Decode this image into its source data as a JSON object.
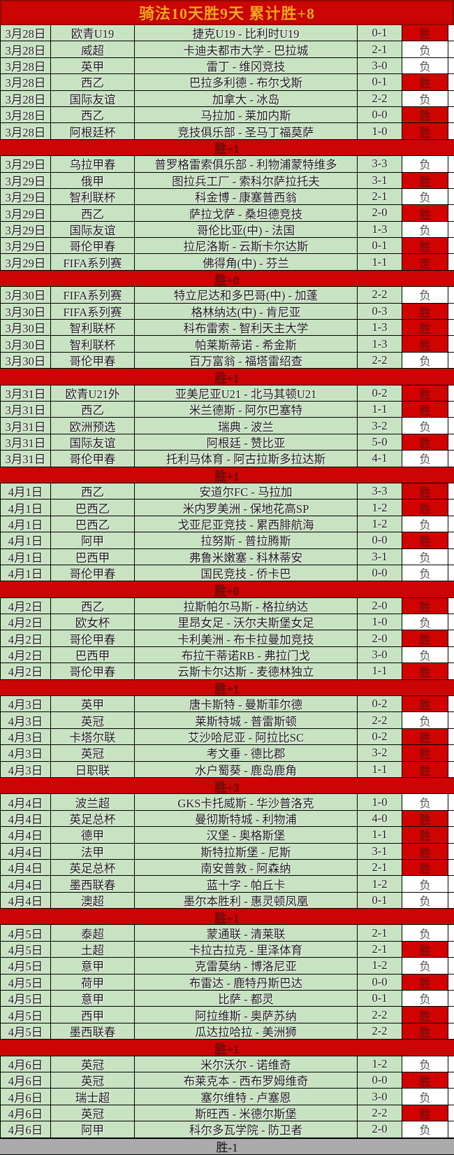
{
  "title": "骑法10天胜9天  累计胜+8",
  "colors": {
    "title_bg": "#cb0404",
    "title_text": "#ffa41c",
    "row_bg": "#c8e3c2",
    "win_bg": "#d00300",
    "win_text": "#7c1111",
    "lose_bg": "#ffffff",
    "lose_text": "#555555",
    "sep_bg": "#cb0404",
    "sep_text": "#7a0b0b",
    "footer_bg": "#ababab",
    "border": "#000000"
  },
  "result_legend": {
    "win": "胜",
    "lose": "负",
    "push": "走"
  },
  "sections": [
    {
      "summary": {
        "label": "胜+1",
        "style": "red"
      },
      "rows": [
        {
          "date": "3月28日",
          "league": "欧青U19",
          "match": "捷克U19 - 比利时U19",
          "score": "0-1",
          "result": "胜",
          "type": "win"
        },
        {
          "date": "3月28日",
          "league": "威超",
          "match": "卡迪夫都市大学 - 巴拉城",
          "score": "2-1",
          "result": "负",
          "type": "lose"
        },
        {
          "date": "3月28日",
          "league": "英甲",
          "match": "雷丁 - 维冈竞技",
          "score": "3-0",
          "result": "负",
          "type": "lose"
        },
        {
          "date": "3月28日",
          "league": "西乙",
          "match": "巴拉多利德 - 布尔戈斯",
          "score": "0-1",
          "result": "胜",
          "type": "win"
        },
        {
          "date": "3月28日",
          "league": "国际友谊",
          "match": "加拿大 - 冰岛",
          "score": "2-2",
          "result": "负",
          "type": "lose"
        },
        {
          "date": "3月28日",
          "league": "西乙",
          "match": "马拉加 - 莱加内斯",
          "score": "0-0",
          "result": "胜",
          "type": "win"
        },
        {
          "date": "3月28日",
          "league": "阿根廷杯",
          "match": "竞技俱乐部 - 圣马丁福莫萨",
          "score": "1-0",
          "result": "胜",
          "type": "win"
        }
      ]
    },
    {
      "summary": {
        "label": "胜+0",
        "style": "red"
      },
      "rows": [
        {
          "date": "3月29日",
          "league": "乌拉甲春",
          "match": "普罗格雷索俱乐部 - 利物浦蒙特维多",
          "score": "3-3",
          "result": "负",
          "type": "lose"
        },
        {
          "date": "3月29日",
          "league": "俄甲",
          "match": "图拉兵工厂 - 索科尔萨拉托夫",
          "score": "3-1",
          "result": "胜",
          "type": "win"
        },
        {
          "date": "3月29日",
          "league": "智利联杯",
          "match": "科金博 - 康塞普西翁",
          "score": "2-1",
          "result": "负",
          "type": "lose"
        },
        {
          "date": "3月29日",
          "league": "西乙",
          "match": "萨拉戈萨 - 桑坦德竞技",
          "score": "2-0",
          "result": "胜",
          "type": "win"
        },
        {
          "date": "3月29日",
          "league": "国际友谊",
          "match": "哥伦比亚(中) - 法国",
          "score": "1-3",
          "result": "负",
          "type": "lose"
        },
        {
          "date": "3月29日",
          "league": "哥伦甲春",
          "match": "拉尼洛斯 - 云斯卡尔达斯",
          "score": "0-1",
          "result": "胜",
          "type": "win"
        },
        {
          "date": "3月29日",
          "league": "FIFA系列赛",
          "match": "佛得角(中) - 芬兰",
          "score": "1-1",
          "result": "走",
          "type": "push"
        }
      ]
    },
    {
      "summary": {
        "label": "胜+1",
        "style": "red"
      },
      "rows": [
        {
          "date": "3月30日",
          "league": "FIFA系列赛",
          "match": "特立尼达和多巴哥(中) - 加蓬",
          "score": "2-2",
          "result": "负",
          "type": "lose"
        },
        {
          "date": "3月30日",
          "league": "FIFA系列赛",
          "match": "格林纳达(中) - 肯尼亚",
          "score": "0-3",
          "result": "胜",
          "type": "win"
        },
        {
          "date": "3月30日",
          "league": "智利联杯",
          "match": "科布雷索 - 智利天主大学",
          "score": "1-3",
          "result": "胜",
          "type": "win"
        },
        {
          "date": "3月30日",
          "league": "智利联杯",
          "match": "帕莱斯蒂诺 - 希金斯",
          "score": "1-3",
          "result": "胜",
          "type": "win"
        },
        {
          "date": "3月30日",
          "league": "哥伦甲春",
          "match": "百万富翁 - 福塔雷绍查",
          "score": "2-2",
          "result": "负",
          "type": "lose"
        }
      ]
    },
    {
      "summary": {
        "label": "胜+1",
        "style": "red"
      },
      "rows": [
        {
          "date": "3月31日",
          "league": "欧青U21外",
          "match": "亚美尼亚U21 - 北马其顿U21",
          "score": "0-2",
          "result": "胜",
          "type": "win"
        },
        {
          "date": "3月31日",
          "league": "西乙",
          "match": "米兰德斯 - 阿尔巴塞特",
          "score": "1-1",
          "result": "胜",
          "type": "win"
        },
        {
          "date": "3月31日",
          "league": "欧洲预选",
          "match": "瑞典 - 波兰",
          "score": "3-2",
          "result": "负",
          "type": "lose"
        },
        {
          "date": "3月31日",
          "league": "国际友谊",
          "match": "阿根廷 - 赞比亚",
          "score": "5-0",
          "result": "胜",
          "type": "win"
        },
        {
          "date": "3月31日",
          "league": "哥伦甲春",
          "match": "托利马体育 - 阿古拉斯多拉达斯",
          "score": "4-1",
          "result": "负",
          "type": "lose"
        }
      ]
    },
    {
      "summary": {
        "label": "胜+0",
        "style": "red"
      },
      "rows": [
        {
          "date": "4月1日",
          "league": "西乙",
          "match": "安道尔FC - 马拉加",
          "score": "3-3",
          "result": "胜",
          "type": "win"
        },
        {
          "date": "4月1日",
          "league": "巴西乙",
          "match": "米内罗美洲 - 保地花高SP",
          "score": "1-2",
          "result": "胜",
          "type": "win"
        },
        {
          "date": "4月1日",
          "league": "巴西乙",
          "match": "戈亚尼亚竞技 - 累西腓航海",
          "score": "1-2",
          "result": "负",
          "type": "lose"
        },
        {
          "date": "4月1日",
          "league": "阿甲",
          "match": "拉努斯 - 普拉腾斯",
          "score": "0-0",
          "result": "胜",
          "type": "win"
        },
        {
          "date": "4月1日",
          "league": "巴西甲",
          "match": "弗鲁米嫩塞 - 科林蒂安",
          "score": "3-1",
          "result": "负",
          "type": "lose"
        },
        {
          "date": "4月1日",
          "league": "哥伦甲春",
          "match": "国民竞技 - 侨卡巴",
          "score": "0-0",
          "result": "负",
          "type": "lose"
        }
      ]
    },
    {
      "summary": {
        "label": "胜+1",
        "style": "red"
      },
      "rows": [
        {
          "date": "4月2日",
          "league": "西乙",
          "match": "拉斯帕尔马斯 - 格拉纳达",
          "score": "2-0",
          "result": "胜",
          "type": "win"
        },
        {
          "date": "4月2日",
          "league": "欧女杯",
          "match": "里昂女足 - 沃尔夫斯堡女足",
          "score": "1-0",
          "result": "负",
          "type": "lose"
        },
        {
          "date": "4月2日",
          "league": "哥伦甲春",
          "match": "卡利美洲 - 布卡拉曼加竞技",
          "score": "2-0",
          "result": "胜",
          "type": "win"
        },
        {
          "date": "4月2日",
          "league": "巴西甲",
          "match": "布拉干蒂诺RB - 弗拉门戈",
          "score": "3-0",
          "result": "负",
          "type": "lose"
        },
        {
          "date": "4月2日",
          "league": "哥伦甲春",
          "match": "云斯卡尔达斯 - 麦德林独立",
          "score": "1-1",
          "result": "胜",
          "type": "win"
        }
      ]
    },
    {
      "summary": {
        "label": "胜+3",
        "style": "red"
      },
      "rows": [
        {
          "date": "4月3日",
          "league": "英甲",
          "match": "唐卡斯特 - 曼斯菲尔德",
          "score": "0-2",
          "result": "胜",
          "type": "win"
        },
        {
          "date": "4月3日",
          "league": "英冠",
          "match": "莱斯特城 - 普雷斯顿",
          "score": "2-2",
          "result": "负",
          "type": "lose"
        },
        {
          "date": "4月3日",
          "league": "卡塔尔联",
          "match": "艾沙哈尼亚 - 阿拉比SC",
          "score": "0-2",
          "result": "胜",
          "type": "win"
        },
        {
          "date": "4月3日",
          "league": "英冠",
          "match": "考文垂 - 德比郡",
          "score": "3-2",
          "result": "胜",
          "type": "win"
        },
        {
          "date": "4月3日",
          "league": "日职联",
          "match": "水户蜀葵 - 鹿岛鹿角",
          "score": "1-1",
          "result": "胜",
          "type": "win"
        }
      ]
    },
    {
      "summary": {
        "label": "胜+1",
        "style": "red"
      },
      "rows": [
        {
          "date": "4月4日",
          "league": "波兰超",
          "match": "GKS卡托威斯 - 华沙普洛克",
          "score": "1-0",
          "result": "负",
          "type": "lose"
        },
        {
          "date": "4月4日",
          "league": "英足总杯",
          "match": "曼彻斯特城 - 利物浦",
          "score": "4-0",
          "result": "胜",
          "type": "win"
        },
        {
          "date": "4月4日",
          "league": "德甲",
          "match": "汉堡 - 奥格斯堡",
          "score": "1-1",
          "result": "胜",
          "type": "win"
        },
        {
          "date": "4月4日",
          "league": "法甲",
          "match": "斯特拉斯堡 - 尼斯",
          "score": "3-1",
          "result": "胜",
          "type": "win"
        },
        {
          "date": "4月4日",
          "league": "英足总杯",
          "match": "南安普敦 - 阿森纳",
          "score": "2-1",
          "result": "胜",
          "type": "win"
        },
        {
          "date": "4月4日",
          "league": "墨西联春",
          "match": "蓝十字 - 帕丘卡",
          "score": "1-2",
          "result": "负",
          "type": "lose"
        },
        {
          "date": "4月4日",
          "league": "澳超",
          "match": "墨尔本胜利 - 惠灵顿凤凰",
          "score": "0-1",
          "result": "负",
          "type": "lose"
        }
      ]
    },
    {
      "summary": {
        "label": "胜+1",
        "style": "red"
      },
      "rows": [
        {
          "date": "4月5日",
          "league": "泰超",
          "match": "蒙通联 - 清莱联",
          "score": "2-1",
          "result": "负",
          "type": "lose"
        },
        {
          "date": "4月5日",
          "league": "土超",
          "match": "卡拉古拉克 - 里泽体育",
          "score": "2-1",
          "result": "胜",
          "type": "win"
        },
        {
          "date": "4月5日",
          "league": "意甲",
          "match": "克雷莫纳 - 博洛尼亚",
          "score": "1-2",
          "result": "负",
          "type": "lose"
        },
        {
          "date": "4月5日",
          "league": "荷甲",
          "match": "布雷达 - 鹿特丹斯巴达",
          "score": "0-0",
          "result": "胜",
          "type": "win"
        },
        {
          "date": "4月5日",
          "league": "意甲",
          "match": "比萨 - 都灵",
          "score": "0-1",
          "result": "负",
          "type": "lose"
        },
        {
          "date": "4月5日",
          "league": "西甲",
          "match": "阿拉维斯 - 奥萨苏纳",
          "score": "2-2",
          "result": "胜",
          "type": "win"
        },
        {
          "date": "4月5日",
          "league": "墨西联春",
          "match": "瓜达拉哈拉 - 美洲狮",
          "score": "2-2",
          "result": "胜",
          "type": "win"
        }
      ]
    },
    {
      "summary": {
        "label": "胜-1",
        "style": "gray"
      },
      "rows": [
        {
          "date": "4月6日",
          "league": "英冠",
          "match": "米尔沃尔 - 诺维奇",
          "score": "1-2",
          "result": "负",
          "type": "lose"
        },
        {
          "date": "4月6日",
          "league": "英冠",
          "match": "布莱克本 - 西布罗姆维奇",
          "score": "0-0",
          "result": "胜",
          "type": "win"
        },
        {
          "date": "4月6日",
          "league": "瑞士超",
          "match": "塞尔维特 - 卢塞恩",
          "score": "3-0",
          "result": "负",
          "type": "lose"
        },
        {
          "date": "4月6日",
          "league": "英冠",
          "match": "斯旺西 - 米德尔斯堡",
          "score": "2-2",
          "result": "胜",
          "type": "win"
        },
        {
          "date": "4月6日",
          "league": "阿甲",
          "match": "科尔多瓦学院 - 防卫者",
          "score": "2-0",
          "result": "负",
          "type": "lose"
        }
      ]
    }
  ]
}
